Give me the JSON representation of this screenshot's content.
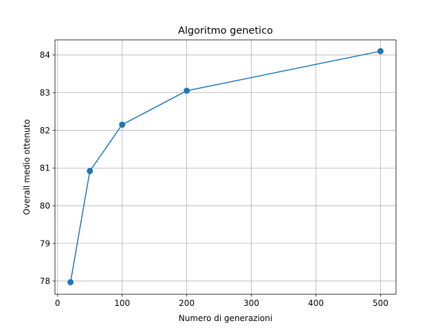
{
  "chart_data": {
    "type": "line",
    "title": "Algoritmo genetico",
    "xlabel": "Numero di generazioni",
    "ylabel": "Overall medio ottenuto",
    "xlim": [
      -4,
      524
    ],
    "ylim": [
      77.65,
      84.4
    ],
    "xticks": [
      0,
      100,
      200,
      300,
      400,
      500
    ],
    "yticks": [
      78,
      79,
      80,
      81,
      82,
      83,
      84
    ],
    "grid": true,
    "legend": "none",
    "series": [
      {
        "color": "#1f77b4",
        "marker": "circle",
        "x": [
          20,
          50,
          100,
          200,
          500
        ],
        "y": [
          77.97,
          80.92,
          82.15,
          83.05,
          84.1
        ]
      }
    ]
  }
}
